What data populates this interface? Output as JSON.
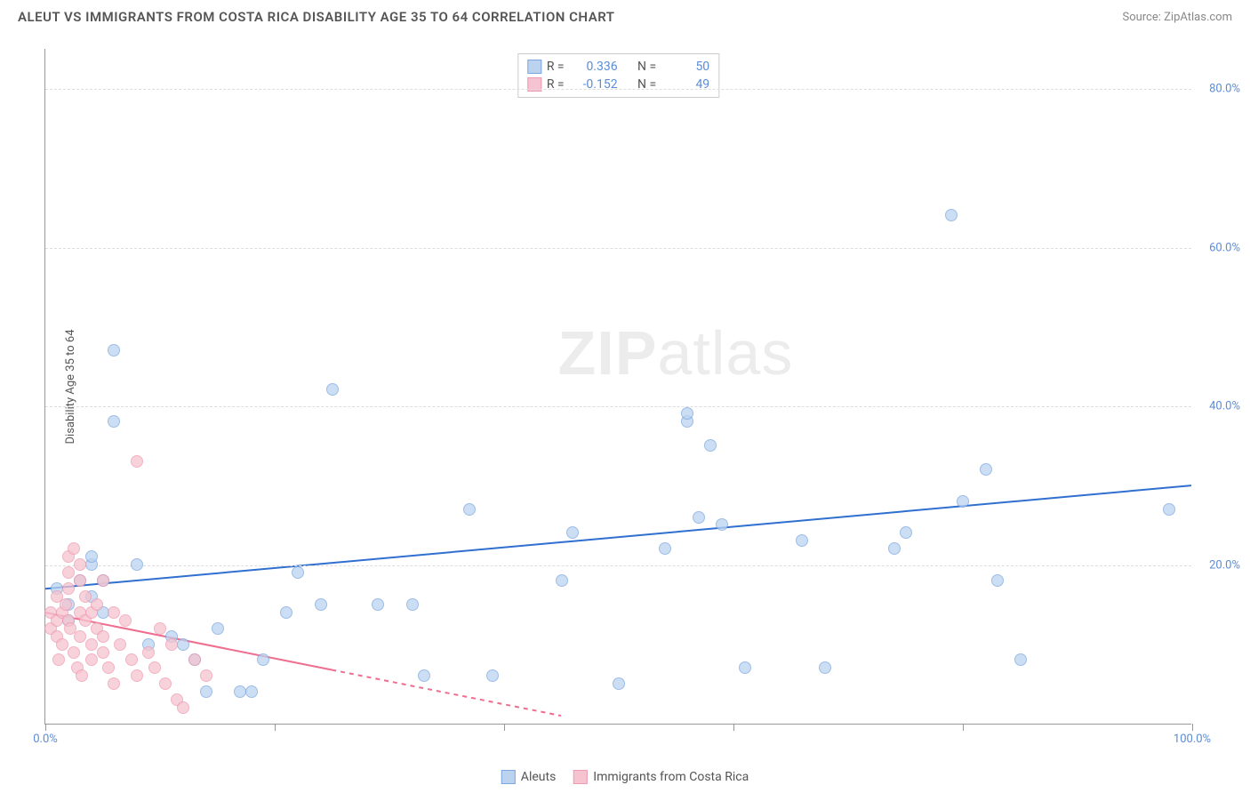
{
  "title": "ALEUT VS IMMIGRANTS FROM COSTA RICA DISABILITY AGE 35 TO 64 CORRELATION CHART",
  "source": "Source: ZipAtlas.com",
  "ylabel": "Disability Age 35 to 64",
  "watermark_bold": "ZIP",
  "watermark_light": "atlas",
  "chart": {
    "type": "scatter",
    "xmin": 0,
    "xmax": 100,
    "ymin": 0,
    "ymax": 85,
    "yticks": [
      20,
      40,
      60,
      80
    ],
    "ytick_labels": [
      "20.0%",
      "40.0%",
      "60.0%",
      "80.0%"
    ],
    "xticks": [
      0,
      20,
      40,
      60,
      80,
      100
    ],
    "xtick_labels_ends": {
      "left": "0.0%",
      "right": "100.0%"
    },
    "grid_color": "#dddddd",
    "axis_color": "#999999",
    "tick_label_color": "#5b8dd6",
    "point_radius": 7,
    "series": [
      {
        "name": "Aleuts",
        "color_fill": "#bcd3f0",
        "color_stroke": "#7ba7e0",
        "R": "0.336",
        "N": "50",
        "trend": {
          "x1": 0,
          "y1": 17,
          "x2": 100,
          "y2": 30,
          "color": "#2f6fd0",
          "width": 2,
          "dash": false
        },
        "points": [
          [
            1,
            17
          ],
          [
            2,
            15
          ],
          [
            2,
            13
          ],
          [
            3,
            18
          ],
          [
            4,
            20
          ],
          [
            4,
            21
          ],
          [
            4,
            16
          ],
          [
            5,
            14
          ],
          [
            5,
            18
          ],
          [
            6,
            47
          ],
          [
            6,
            38
          ],
          [
            8,
            20
          ],
          [
            9,
            10
          ],
          [
            11,
            11
          ],
          [
            12,
            10
          ],
          [
            13,
            8
          ],
          [
            14,
            4
          ],
          [
            15,
            12
          ],
          [
            17,
            4
          ],
          [
            18,
            4
          ],
          [
            19,
            8
          ],
          [
            21,
            14
          ],
          [
            22,
            19
          ],
          [
            24,
            15
          ],
          [
            25,
            42
          ],
          [
            29,
            15
          ],
          [
            32,
            15
          ],
          [
            33,
            6
          ],
          [
            37,
            27
          ],
          [
            39,
            6
          ],
          [
            45,
            18
          ],
          [
            46,
            24
          ],
          [
            50,
            5
          ],
          [
            54,
            22
          ],
          [
            56,
            38
          ],
          [
            56,
            39
          ],
          [
            57,
            26
          ],
          [
            58,
            35
          ],
          [
            59,
            25
          ],
          [
            61,
            7
          ],
          [
            66,
            23
          ],
          [
            68,
            7
          ],
          [
            74,
            22
          ],
          [
            75,
            24
          ],
          [
            79,
            64
          ],
          [
            80,
            28
          ],
          [
            82,
            32
          ],
          [
            83,
            18
          ],
          [
            85,
            8
          ],
          [
            98,
            27
          ]
        ]
      },
      {
        "name": "Immigrants from Costa Rica",
        "color_fill": "#f6c4d0",
        "color_stroke": "#ef9ab0",
        "R": "-0.152",
        "N": "49",
        "trend": {
          "x1": 0,
          "y1": 14,
          "x2": 45,
          "y2": 1,
          "color": "#ef6d8f",
          "width": 2,
          "dash_after": 25
        },
        "points": [
          [
            0.5,
            12
          ],
          [
            0.5,
            14
          ],
          [
            1,
            11
          ],
          [
            1,
            13
          ],
          [
            1,
            16
          ],
          [
            1.2,
            8
          ],
          [
            1.5,
            14
          ],
          [
            1.5,
            10
          ],
          [
            1.8,
            15
          ],
          [
            2,
            13
          ],
          [
            2,
            17
          ],
          [
            2,
            19
          ],
          [
            2,
            21
          ],
          [
            2.2,
            12
          ],
          [
            2.5,
            22
          ],
          [
            2.5,
            9
          ],
          [
            2.8,
            7
          ],
          [
            3,
            11
          ],
          [
            3,
            14
          ],
          [
            3,
            18
          ],
          [
            3,
            20
          ],
          [
            3.2,
            6
          ],
          [
            3.5,
            13
          ],
          [
            3.5,
            16
          ],
          [
            4,
            10
          ],
          [
            4,
            14
          ],
          [
            4,
            8
          ],
          [
            4.5,
            12
          ],
          [
            4.5,
            15
          ],
          [
            5,
            9
          ],
          [
            5,
            11
          ],
          [
            5,
            18
          ],
          [
            5.5,
            7
          ],
          [
            6,
            14
          ],
          [
            6,
            5
          ],
          [
            6.5,
            10
          ],
          [
            7,
            13
          ],
          [
            7.5,
            8
          ],
          [
            8,
            33
          ],
          [
            8,
            6
          ],
          [
            9,
            9
          ],
          [
            9.5,
            7
          ],
          [
            10,
            12
          ],
          [
            10.5,
            5
          ],
          [
            11,
            10
          ],
          [
            11.5,
            3
          ],
          [
            12,
            2
          ],
          [
            13,
            8
          ],
          [
            14,
            6
          ]
        ]
      }
    ]
  },
  "corr_legend_labels": {
    "R": "R =",
    "N": "N ="
  }
}
